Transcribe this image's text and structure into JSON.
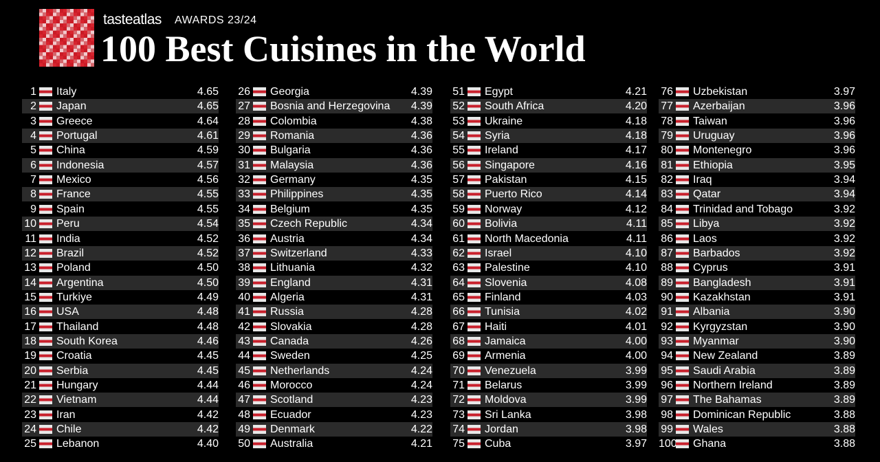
{
  "header": {
    "brand": "tasteatlas",
    "awards": "AWARDS 23/24",
    "title": "100 Best Cuisines in the World"
  },
  "rows": [
    [
      1,
      "Italy",
      "4.65"
    ],
    [
      2,
      "Japan",
      "4.65"
    ],
    [
      3,
      "Greece",
      "4.64"
    ],
    [
      4,
      "Portugal",
      "4.61"
    ],
    [
      5,
      "China",
      "4.59"
    ],
    [
      6,
      "Indonesia",
      "4.57"
    ],
    [
      7,
      "Mexico",
      "4.56"
    ],
    [
      8,
      "France",
      "4.55"
    ],
    [
      9,
      "Spain",
      "4.55"
    ],
    [
      10,
      "Peru",
      "4.54"
    ],
    [
      11,
      "India",
      "4.52"
    ],
    [
      12,
      "Brazil",
      "4.52"
    ],
    [
      13,
      "Poland",
      "4.50"
    ],
    [
      14,
      "Argentina",
      "4.50"
    ],
    [
      15,
      "Turkiye",
      "4.49"
    ],
    [
      16,
      "USA",
      "4.48"
    ],
    [
      17,
      "Thailand",
      "4.48"
    ],
    [
      18,
      "South Korea",
      "4.46"
    ],
    [
      19,
      "Croatia",
      "4.45"
    ],
    [
      20,
      "Serbia",
      "4.45"
    ],
    [
      21,
      "Hungary",
      "4.44"
    ],
    [
      22,
      "Vietnam",
      "4.44"
    ],
    [
      23,
      "Iran",
      "4.42"
    ],
    [
      24,
      "Chile",
      "4.42"
    ],
    [
      25,
      "Lebanon",
      "4.40"
    ],
    [
      26,
      "Georgia",
      "4.39"
    ],
    [
      27,
      "Bosnia and Herzegovina",
      "4.39"
    ],
    [
      28,
      "Colombia",
      "4.38"
    ],
    [
      29,
      "Romania",
      "4.36"
    ],
    [
      30,
      "Bulgaria",
      "4.36"
    ],
    [
      31,
      "Malaysia",
      "4.36"
    ],
    [
      32,
      "Germany",
      "4.35"
    ],
    [
      33,
      "Philippines",
      "4.35"
    ],
    [
      34,
      "Belgium",
      "4.35"
    ],
    [
      35,
      "Czech Republic",
      "4.34"
    ],
    [
      36,
      "Austria",
      "4.34"
    ],
    [
      37,
      "Switzerland",
      "4.33"
    ],
    [
      38,
      "Lithuania",
      "4.32"
    ],
    [
      39,
      "England",
      "4.31"
    ],
    [
      40,
      "Algeria",
      "4.31"
    ],
    [
      41,
      "Russia",
      "4.28"
    ],
    [
      42,
      "Slovakia",
      "4.28"
    ],
    [
      43,
      "Canada",
      "4.26"
    ],
    [
      44,
      "Sweden",
      "4.25"
    ],
    [
      45,
      "Netherlands",
      "4.24"
    ],
    [
      46,
      "Morocco",
      "4.24"
    ],
    [
      47,
      "Scotland",
      "4.23"
    ],
    [
      48,
      "Ecuador",
      "4.23"
    ],
    [
      49,
      "Denmark",
      "4.22"
    ],
    [
      50,
      "Australia",
      "4.21"
    ],
    [
      51,
      "Egypt",
      "4.21"
    ],
    [
      52,
      "South Africa",
      "4.20"
    ],
    [
      53,
      "Ukraine",
      "4.18"
    ],
    [
      54,
      "Syria",
      "4.18"
    ],
    [
      55,
      "Ireland",
      "4.17"
    ],
    [
      56,
      "Singapore",
      "4.16"
    ],
    [
      57,
      "Pakistan",
      "4.15"
    ],
    [
      58,
      "Puerto Rico",
      "4.14"
    ],
    [
      59,
      "Norway",
      "4.12"
    ],
    [
      60,
      "Bolivia",
      "4.11"
    ],
    [
      61,
      "North Macedonia",
      "4.11"
    ],
    [
      62,
      "Israel",
      "4.10"
    ],
    [
      63,
      "Palestine",
      "4.10"
    ],
    [
      64,
      "Slovenia",
      "4.08"
    ],
    [
      65,
      "Finland",
      "4.03"
    ],
    [
      66,
      "Tunisia",
      "4.02"
    ],
    [
      67,
      "Haiti",
      "4.01"
    ],
    [
      68,
      "Jamaica",
      "4.00"
    ],
    [
      69,
      "Armenia",
      "4.00"
    ],
    [
      70,
      "Venezuela",
      "3.99"
    ],
    [
      71,
      "Belarus",
      "3.99"
    ],
    [
      72,
      "Moldova",
      "3.99"
    ],
    [
      73,
      "Sri Lanka",
      "3.98"
    ],
    [
      74,
      "Jordan",
      "3.98"
    ],
    [
      75,
      "Cuba",
      "3.97"
    ],
    [
      76,
      "Uzbekistan",
      "3.97"
    ],
    [
      77,
      "Azerbaijan",
      "3.96"
    ],
    [
      78,
      "Taiwan",
      "3.96"
    ],
    [
      79,
      "Uruguay",
      "3.96"
    ],
    [
      80,
      "Montenegro",
      "3.96"
    ],
    [
      81,
      "Ethiopia",
      "3.95"
    ],
    [
      82,
      "Iraq",
      "3.94"
    ],
    [
      83,
      "Qatar",
      "3.94"
    ],
    [
      84,
      "Trinidad and Tobago",
      "3.92"
    ],
    [
      85,
      "Libya",
      "3.92"
    ],
    [
      86,
      "Laos",
      "3.92"
    ],
    [
      87,
      "Barbados",
      "3.92"
    ],
    [
      88,
      "Cyprus",
      "3.91"
    ],
    [
      89,
      "Bangladesh",
      "3.91"
    ],
    [
      90,
      "Kazakhstan",
      "3.91"
    ],
    [
      91,
      "Albania",
      "3.90"
    ],
    [
      92,
      "Kyrgyzstan",
      "3.90"
    ],
    [
      93,
      "Myanmar",
      "3.90"
    ],
    [
      94,
      "New Zealand",
      "3.89"
    ],
    [
      95,
      "Saudi Arabia",
      "3.89"
    ],
    [
      96,
      "Northern Ireland",
      "3.89"
    ],
    [
      97,
      "The Bahamas",
      "3.89"
    ],
    [
      98,
      "Dominican Republic",
      "3.88"
    ],
    [
      99,
      "Wales",
      "3.88"
    ],
    [
      100,
      "Ghana",
      "3.88"
    ]
  ]
}
